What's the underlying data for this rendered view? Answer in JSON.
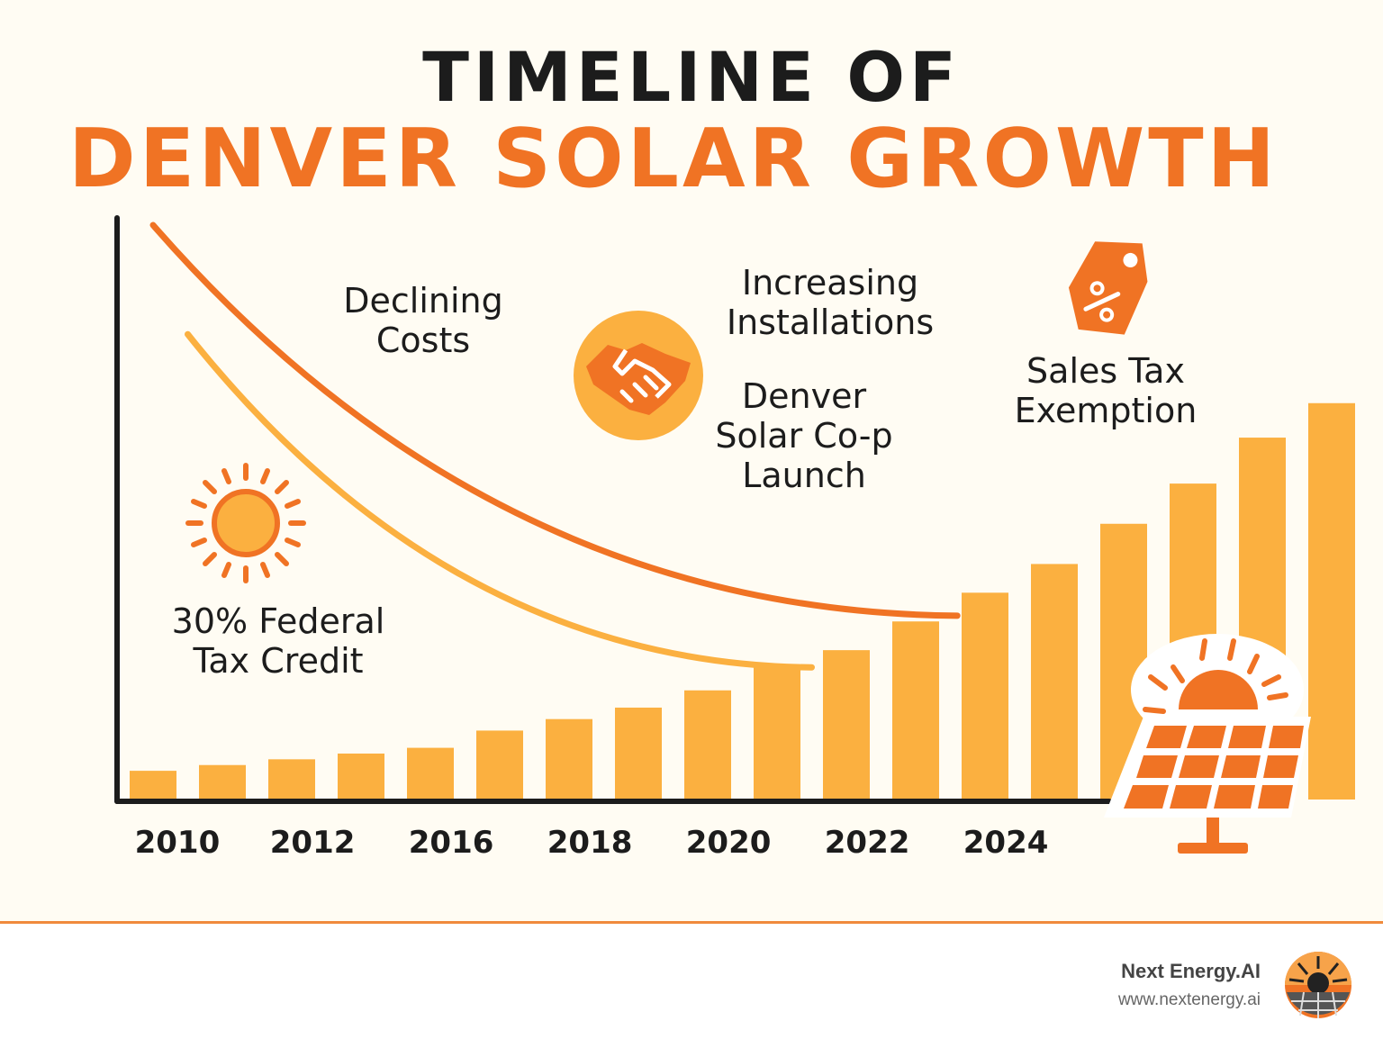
{
  "title": {
    "line1": "TIMELINE OF",
    "line2": "DENVER SOLAR GROWTH"
  },
  "colors": {
    "accent": "#f07324",
    "bar": "#fbb040",
    "dark": "#1c1c1c",
    "background": "#fffcf3"
  },
  "annotations": {
    "declining_costs": [
      "Declining",
      "Costs"
    ],
    "increasing_installations": [
      "Increasing",
      "Installations"
    ],
    "coop_launch": [
      "Denver",
      "Solar Co-p",
      "Launch"
    ],
    "sales_tax": [
      "Sales Tax",
      "Exemption"
    ],
    "federal_credit": [
      "30% Federal",
      "Tax Credit"
    ]
  },
  "icons": [
    "sun-icon",
    "handshake-icon",
    "percent-tag-icon",
    "solar-panel-icon",
    "brand-logo-icon"
  ],
  "chart_data": {
    "type": "bar",
    "x_tick_labels": [
      "2010",
      "2012",
      "2016",
      "2018",
      "2020",
      "2022",
      "2024"
    ],
    "values": [
      0.05,
      0.06,
      0.07,
      0.08,
      0.09,
      0.12,
      0.14,
      0.16,
      0.19,
      0.23,
      0.26,
      0.31,
      0.36,
      0.41,
      0.48,
      0.55,
      0.63,
      0.69
    ],
    "ylim": [
      0,
      1
    ],
    "grid": false,
    "trend_lines": [
      {
        "name": "cost-line-upper",
        "color": "#f07324",
        "x": [
          0,
          11.6
        ],
        "y": [
          1.0,
          0.32
        ]
      },
      {
        "name": "cost-line-lower",
        "color": "#fbb040",
        "x": [
          0.5,
          9.5
        ],
        "y": [
          0.81,
          0.23
        ]
      }
    ]
  },
  "footer": {
    "brand": "Next Energy.AI",
    "url": "www.nextenergy.ai"
  }
}
